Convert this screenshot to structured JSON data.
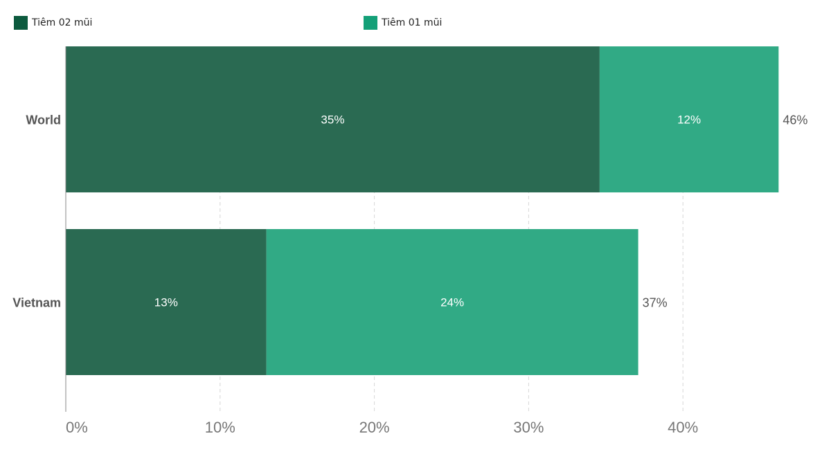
{
  "chart_data": {
    "type": "bar",
    "orientation": "horizontal",
    "stacked": true,
    "categories": [
      "World",
      "Vietnam"
    ],
    "series": [
      {
        "name": "Tiêm 02 mũi",
        "values": [
          34.6,
          13.0
        ],
        "labels": [
          "35%",
          "13%"
        ],
        "color": "#2a6a52"
      },
      {
        "name": "Tiêm 01 mũi",
        "values": [
          11.6,
          24.1
        ],
        "labels": [
          "12%",
          "24%"
        ],
        "color": "#31aa85"
      }
    ],
    "totals": [
      "46%",
      "37%"
    ],
    "xlim": [
      0,
      48
    ],
    "xticks": [
      0,
      10,
      20,
      30,
      40
    ],
    "xtick_labels": [
      "0%",
      "10%",
      "20%",
      "30%",
      "40%"
    ],
    "grid": "vertical-dashed",
    "legend_position": "top",
    "legend_colors": [
      "#0c5a3e",
      "#14a078"
    ]
  }
}
